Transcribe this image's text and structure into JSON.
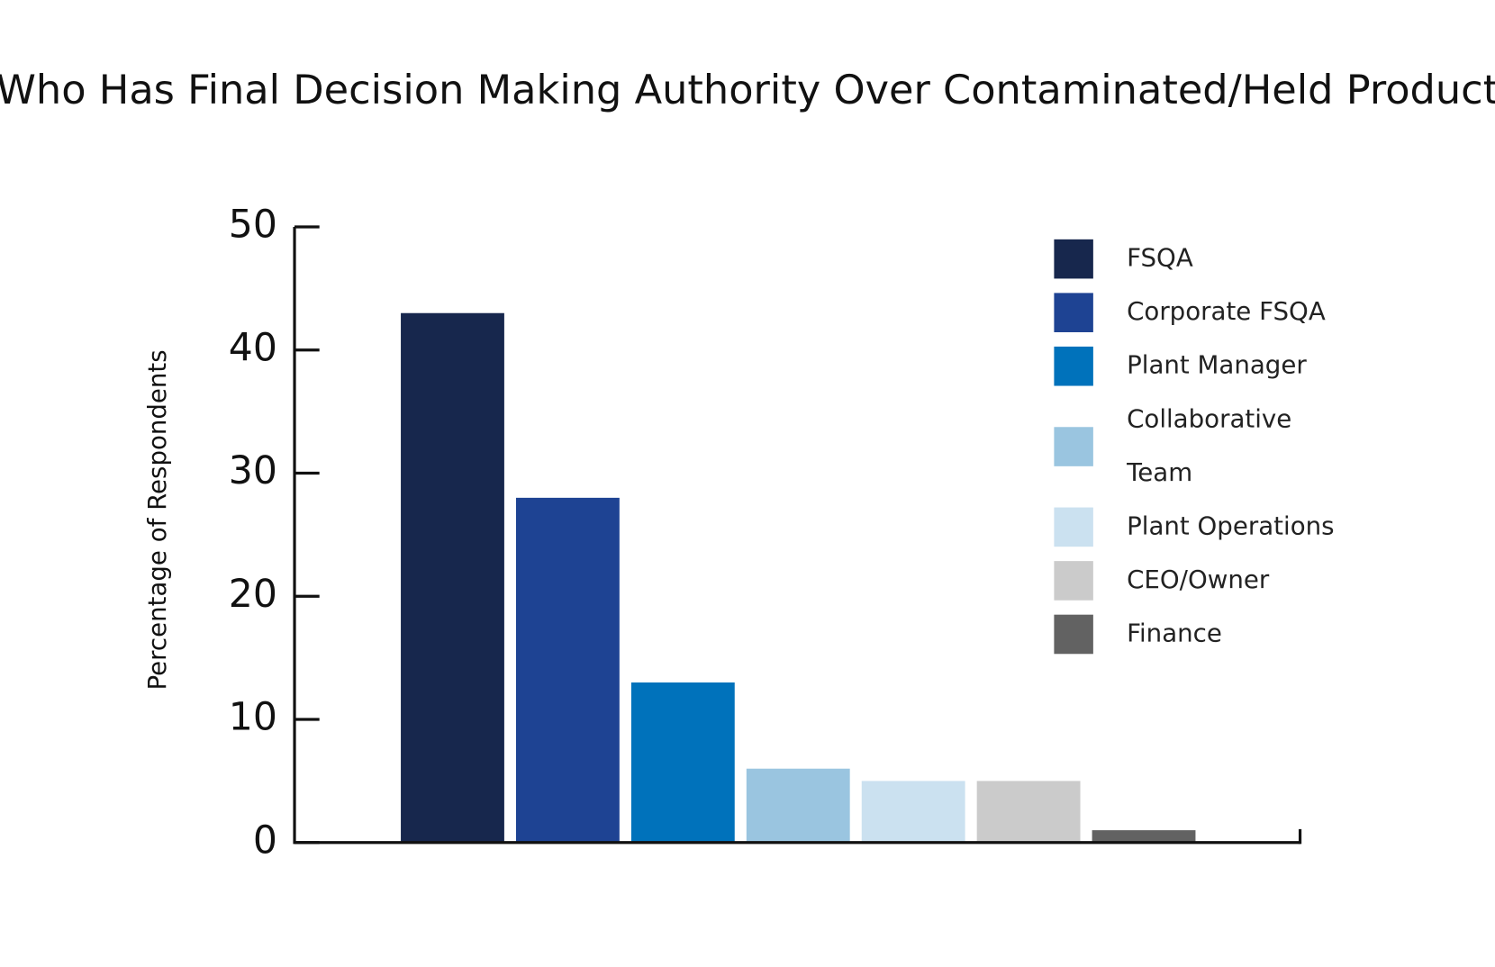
{
  "chart_data": {
    "type": "bar",
    "title": "Who Has Final Decision Making Authority Over Contaminated/Held Product",
    "y_label": "Percentage of Respondents",
    "categories": [
      "FSQA",
      "Corporate FSQA",
      "Plant Manager",
      "Collaborative Team",
      "Plant Operations",
      "CEO/Owner",
      "Finance"
    ],
    "values": [
      43,
      28,
      13,
      6,
      5,
      5,
      1
    ],
    "colors": [
      "#17274d",
      "#1e4393",
      "#0072bb",
      "#9ac5e0",
      "#cbe1f0",
      "#cbcbcb",
      "#626262"
    ],
    "ylim": [
      0,
      50
    ],
    "yticks": [
      0,
      10,
      20,
      30,
      40,
      50
    ],
    "legend": "upper right"
  }
}
